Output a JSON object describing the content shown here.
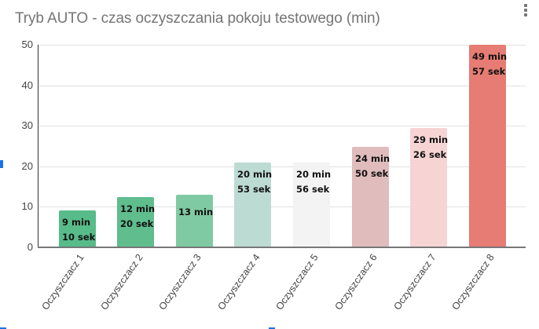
{
  "header": {
    "title": "Tryb AUTO - czas oczyszczania pokoju testowego (min)",
    "menu_icon": "more-vert-icon"
  },
  "chart_data": {
    "type": "bar",
    "title": "Tryb AUTO - czas oczyszczania pokoju testowego (min)",
    "xlabel": "",
    "ylabel": "",
    "ylim": [
      0,
      50
    ],
    "yticks": [
      "0",
      "10",
      "20",
      "30",
      "40",
      "50"
    ],
    "grid": true,
    "legend": "none",
    "categories": [
      "Oczyszczacz 1",
      "Oczyszczacz 2",
      "Oczyszczacz 3",
      "Oczyszczacz 4",
      "Oczyszczacz 5",
      "Oczyszczacz 6",
      "Oczyszczacz 7",
      "Oczyszczacz 8"
    ],
    "values": [
      9.17,
      12.33,
      13.0,
      20.88,
      20.93,
      24.83,
      29.43,
      49.95
    ],
    "data_labels": [
      "9 min\n10 sek",
      "12 min\n20 sek",
      "13 min",
      "20 min\n53 sek",
      "20 min\n56 sek",
      "24 min\n50 sek",
      "29 min\n26 sek",
      "49 min\n57 sek"
    ],
    "colors": [
      "#57bb8a",
      "#5fbd8e",
      "#7fcaa2",
      "#bcdbd3",
      "#f3f3f3",
      "#e0bcbc",
      "#f6d4d4",
      "#e67c73"
    ]
  }
}
